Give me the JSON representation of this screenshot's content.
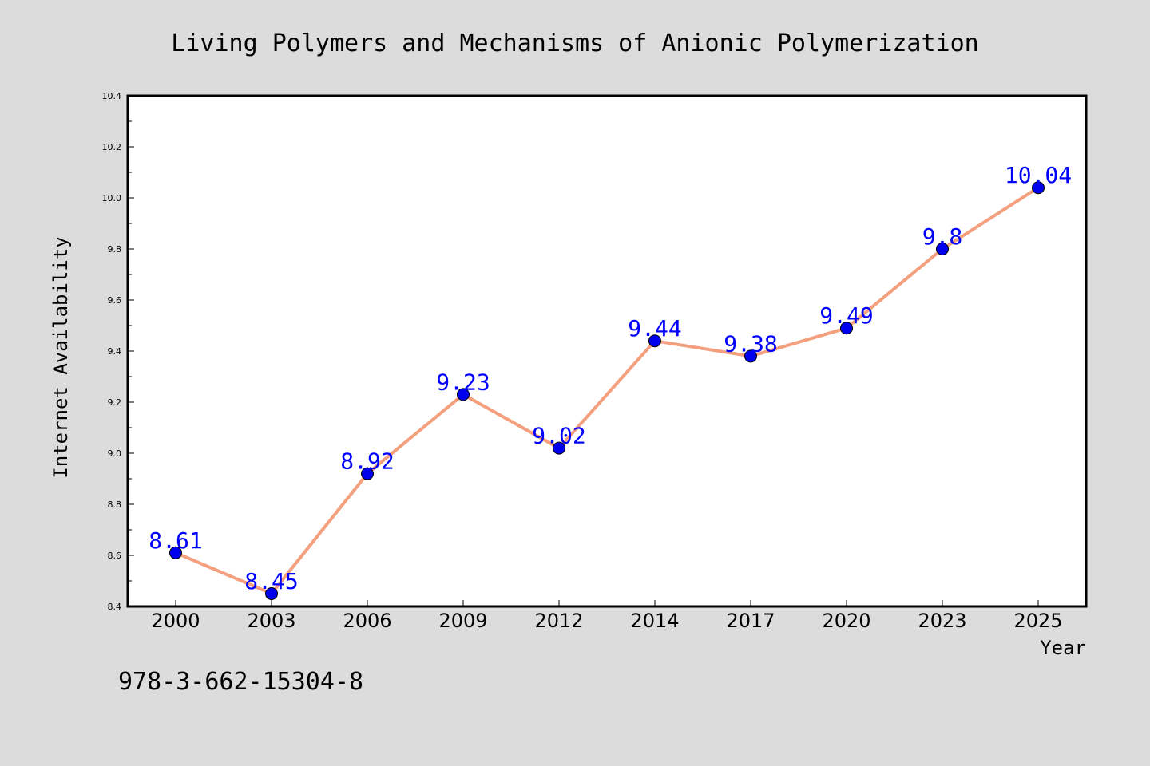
{
  "chart_data": {
    "type": "line",
    "title": "Living Polymers and Mechanisms of Anionic Polymerization",
    "xlabel": "Year",
    "ylabel": "Internet Availability",
    "categories": [
      "2000",
      "2003",
      "2006",
      "2009",
      "2012",
      "2014",
      "2017",
      "2020",
      "2023",
      "2025"
    ],
    "values": [
      8.61,
      8.45,
      8.92,
      9.23,
      9.02,
      9.44,
      9.38,
      9.49,
      9.8,
      10.04
    ],
    "data_labels": [
      "8.61",
      "8.45",
      "8.92",
      "9.23",
      "9.02",
      "9.44",
      "9.38",
      "9.49",
      "9.8",
      "10.04"
    ],
    "ylim": [
      8.4,
      10.4
    ],
    "yticks": [
      "8.4",
      "8.6",
      "8.8",
      "9.0",
      "9.2",
      "9.4",
      "9.6",
      "9.8",
      "10.0",
      "10.2",
      "10.4"
    ],
    "grid": false,
    "line_color": "#f4a07f",
    "marker_color": "#0000ee",
    "label_color": "#0000ff",
    "annotation": "978-3-662-15304-8"
  }
}
